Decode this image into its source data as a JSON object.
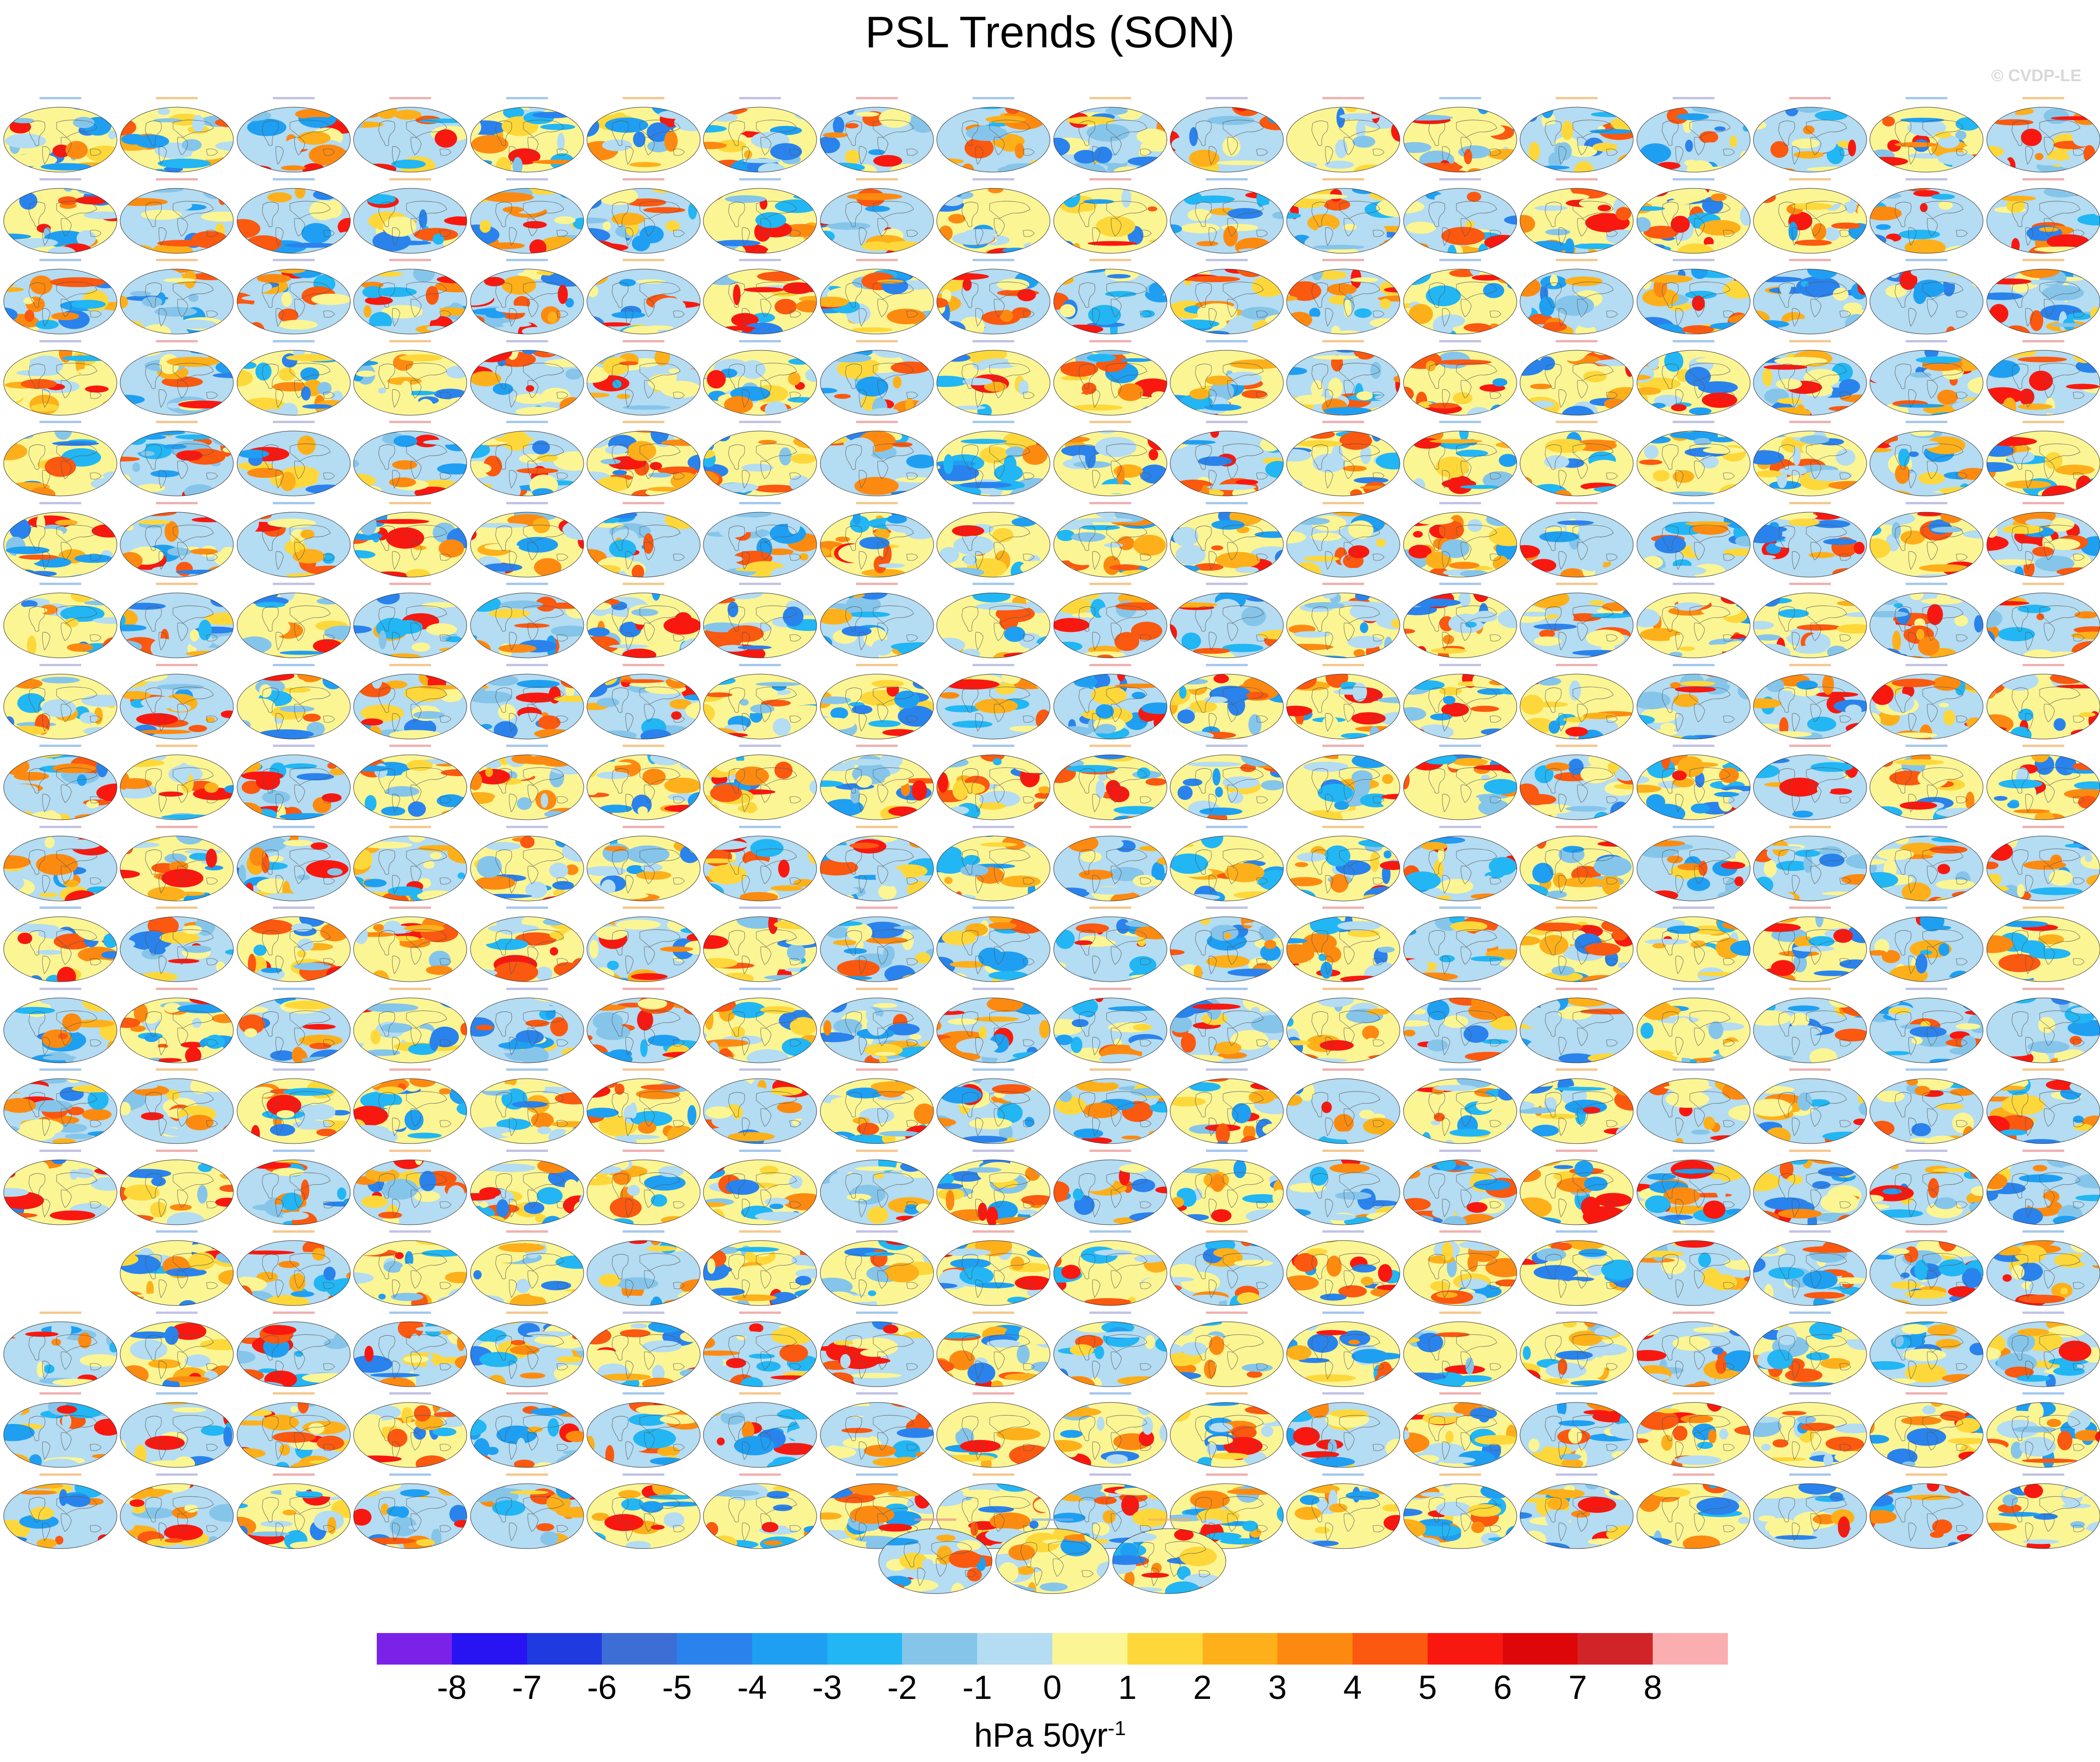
{
  "title": "PSL Trends (SON)",
  "watermark": "© CVDP-LE",
  "colorbar": {
    "colors": [
      "#7b22e8",
      "#2813f2",
      "#1f3be0",
      "#3c6ed6",
      "#2a83ec",
      "#1f9ff2",
      "#22b6f4",
      "#86c5ea",
      "#b4dcf2",
      "#fbf594",
      "#fed83a",
      "#fdb01a",
      "#fd8a10",
      "#fb5810",
      "#f91810",
      "#dd0608",
      "#d12428",
      "#fbaeb0"
    ],
    "ticks": [
      "-8",
      "-7",
      "-6",
      "-5",
      "-4",
      "-3",
      "-2",
      "-1",
      "0",
      "1",
      "2",
      "3",
      "4",
      "5",
      "6",
      "7",
      "8"
    ],
    "units": "hPa 50yr",
    "units_exp": "-1"
  },
  "map_palette": [
    "#b4dcf2",
    "#b4dcf2",
    "#fbf594",
    "#fbf594",
    "#fed83a",
    "#86c5ea",
    "#fdb01a",
    "#22b6f4",
    "#fd8a10",
    "#1f9ff2",
    "#fb5810",
    "#2a83ec",
    "#f91810"
  ],
  "panel_layout": {
    "columns": 18,
    "rows_full": 14,
    "row15_skip_first": true,
    "extra_rows_full": 3,
    "bottom_row_count": 3
  }
}
